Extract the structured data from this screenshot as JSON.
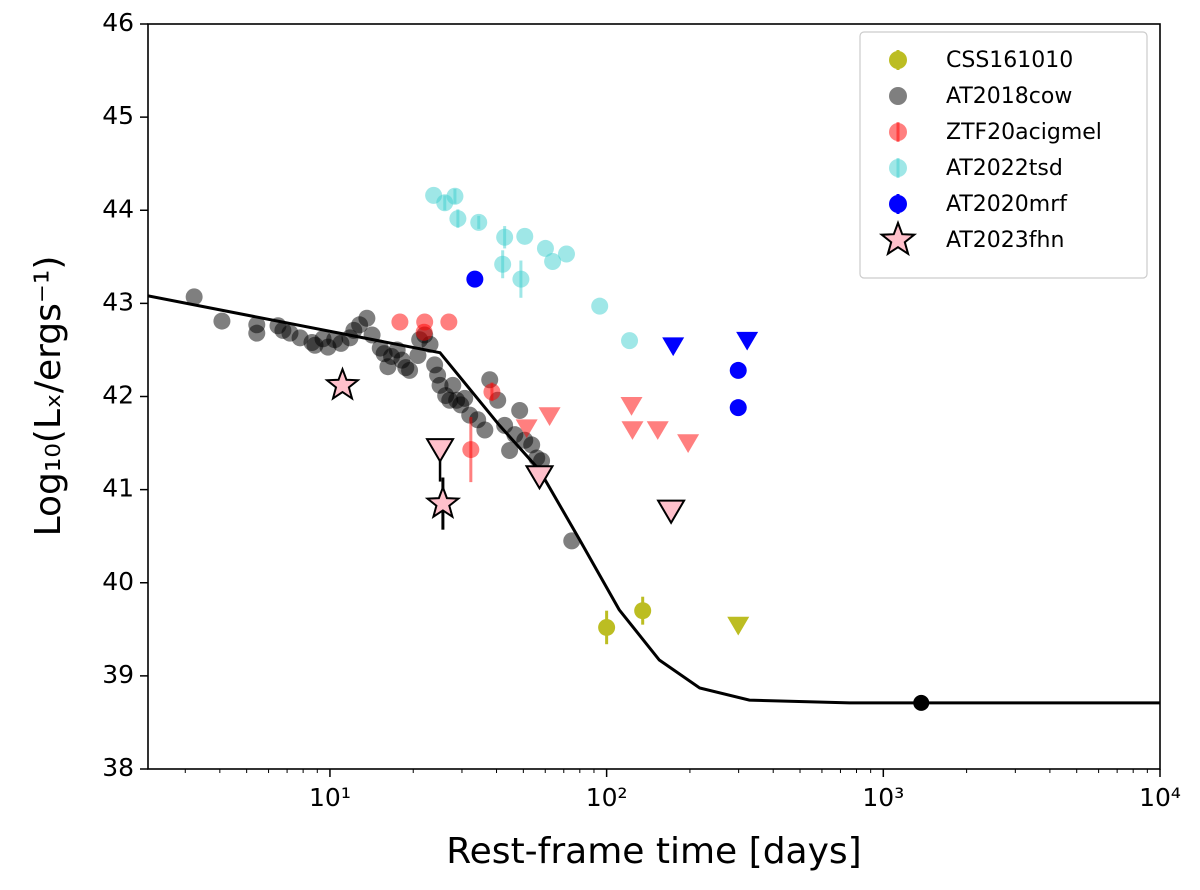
{
  "chart_data": {
    "type": "scatter",
    "xlabel": "Rest-frame time [days]",
    "ylabel": "Log₁₀(Lₓ/ergs⁻¹)",
    "xscale": "log",
    "xlim": [
      2.2,
      10000
    ],
    "ylim": [
      38,
      46
    ],
    "xticks": [
      {
        "value": 10,
        "label": "10¹"
      },
      {
        "value": 100,
        "label": "10²"
      },
      {
        "value": 1000,
        "label": "10³"
      },
      {
        "value": 10000,
        "label": "10⁴"
      }
    ],
    "yticks": [
      38,
      39,
      40,
      41,
      42,
      43,
      44,
      45,
      46
    ],
    "legend": "upper right",
    "series": [
      {
        "name": "CSS161010",
        "color": "#bcbd22",
        "alpha": 1,
        "marker": "circle",
        "x": [
          100,
          135
        ],
        "values": [
          39.52,
          39.7
        ],
        "errors": [
          0.18,
          0.15
        ],
        "limits": {
          "x": [
            299
          ],
          "values": [
            39.54
          ]
        }
      },
      {
        "name": "AT2018cow",
        "color": "#000000",
        "alpha": 0.5,
        "marker": "circle",
        "x": [
          3.23,
          4.07,
          5.44,
          5.44,
          6.49,
          6.76,
          7.17,
          7.8,
          8.61,
          8.83,
          9.44,
          9.84,
          10.4,
          10.96,
          11.81,
          12.2,
          12.8,
          13.6,
          14.2,
          15.2,
          15.7,
          16.2,
          16.7,
          17.5,
          18.2,
          18.8,
          19.4,
          20.8,
          21.1,
          22.0,
          23.0,
          23.9,
          24.5,
          25.0,
          26.2,
          27.1,
          27.8,
          28.7,
          29.7,
          30.7,
          32.0,
          34.2,
          36.3,
          37.8,
          40.4,
          42.8,
          44.6,
          46.6,
          48.5,
          50.6,
          53.6,
          55.9,
          58.2,
          74.8
        ],
        "values": [
          43.07,
          42.81,
          42.68,
          42.77,
          42.76,
          42.71,
          42.68,
          42.63,
          42.58,
          42.55,
          42.62,
          42.53,
          42.61,
          42.57,
          42.63,
          42.71,
          42.77,
          42.84,
          42.66,
          42.52,
          42.46,
          42.32,
          42.43,
          42.5,
          42.39,
          42.31,
          42.28,
          42.44,
          42.61,
          42.66,
          42.56,
          42.34,
          42.23,
          42.12,
          42.01,
          41.96,
          42.12,
          41.96,
          41.91,
          41.98,
          41.8,
          41.75,
          41.64,
          42.18,
          41.96,
          41.69,
          41.42,
          41.59,
          41.85,
          41.53,
          41.48,
          41.34,
          41.31,
          40.45
        ]
      },
      {
        "name": "ZTF20acigmel",
        "color": "#ff0000",
        "alpha": 0.5,
        "marker": "circle",
        "x": [
          17.9,
          22.0,
          21.9,
          26.9,
          38.5,
          32.3
        ],
        "values": [
          42.8,
          42.8,
          42.69,
          42.8,
          42.05,
          41.43
        ],
        "errors": [
          null,
          null,
          null,
          null,
          0.1,
          0.35
        ],
        "limits": {
          "x": [
            51.4,
            62.2,
            123,
            124,
            153,
            197
          ],
          "values": [
            41.66,
            41.79,
            41.9,
            41.64,
            41.64,
            41.5
          ]
        }
      },
      {
        "name": "AT2022tsd",
        "color": "#40d0d0",
        "alpha": 0.5,
        "marker": "circle",
        "x": [
          23.7,
          26.0,
          28.3,
          29.0,
          34.5,
          42.8,
          50.6,
          42.1,
          49.0,
          60.1,
          63.8,
          71.6,
          94.4,
          121
        ],
        "values": [
          44.16,
          44.08,
          44.15,
          43.91,
          43.87,
          43.71,
          43.72,
          43.42,
          43.26,
          43.59,
          43.45,
          43.53,
          42.97,
          42.6
        ],
        "errors": [
          null,
          0.08,
          0.08,
          0.1,
          0.07,
          0.12,
          null,
          0.15,
          0.2,
          null,
          null,
          null,
          null,
          null
        ]
      },
      {
        "name": "AT2020mrf",
        "color": "#0000ff",
        "alpha": 1,
        "marker": "circle",
        "x": [
          33.4,
          299,
          299
        ],
        "values": [
          43.26,
          42.28,
          41.88
        ],
        "errors": [
          0.08,
          null,
          null
        ],
        "limits": {
          "x": [
            174,
            322
          ],
          "values": [
            42.54,
            42.6
          ]
        }
      },
      {
        "name": "AT2023fhn",
        "color": "#ffc0cb",
        "edgecolor": "#000000",
        "alpha": 1,
        "marker": "star",
        "x": [
          11.1,
          25.6
        ],
        "values": [
          42.12,
          40.85
        ],
        "errors": [
          null,
          0.28
        ],
        "limits": {
          "x": [
            25.0,
            57.2,
            171
          ],
          "values": [
            41.43,
            41.14,
            40.77
          ]
        }
      }
    ],
    "model": {
      "color": "#000000",
      "x": [
        2.2,
        25.0,
        41.0,
        57.2,
        79.9,
        111,
        155,
        217,
        328,
        754,
        10000
      ],
      "values": [
        43.08,
        42.47,
        41.69,
        41.21,
        40.46,
        39.71,
        39.17,
        38.87,
        38.74,
        38.71,
        38.71
      ],
      "point_x": [
        1371
      ],
      "point_values": [
        38.71
      ]
    }
  }
}
